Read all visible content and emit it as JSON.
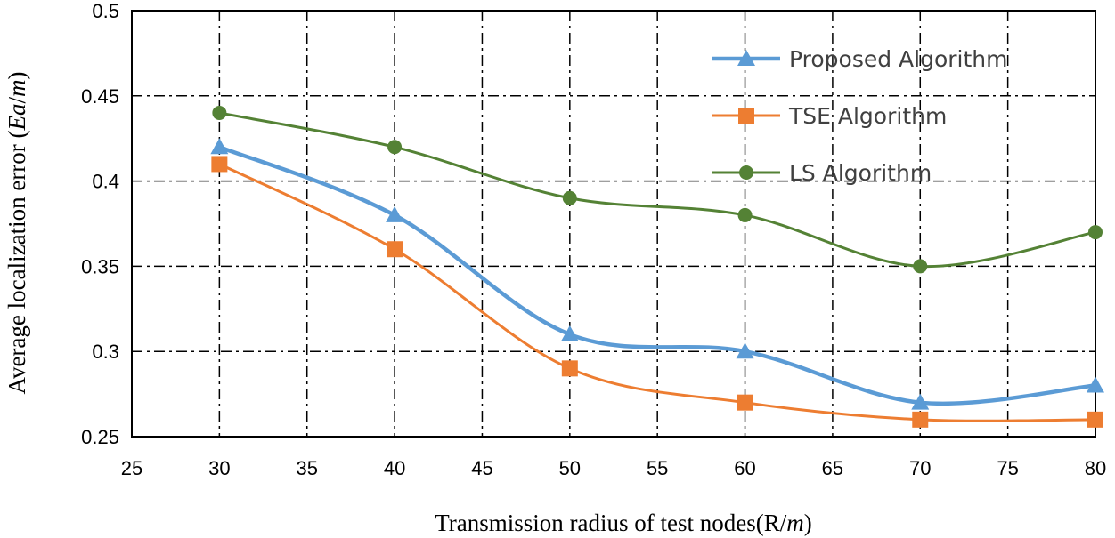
{
  "chart_data": {
    "type": "line",
    "title": "",
    "xlabel": "Transmission radius of test nodes(R/m)",
    "xlabel_parts": [
      "Transmission radius of test nodes(R/",
      "m",
      ")"
    ],
    "ylabel": "Average localization error (Ea/m)",
    "ylabel_parts": [
      "Average localization error (",
      "Ea",
      "/",
      "m",
      ")"
    ],
    "xlim": [
      25,
      80
    ],
    "ylim": [
      0.25,
      0.5
    ],
    "x_ticks": [
      25,
      30,
      35,
      40,
      45,
      50,
      55,
      60,
      65,
      70,
      75,
      80
    ],
    "x_tick_labels": [
      "25",
      "30",
      "35",
      "40",
      "45",
      "50",
      "55",
      "60",
      "65",
      "70",
      "75",
      "80"
    ],
    "y_ticks": [
      0.25,
      0.3,
      0.35,
      0.4,
      0.45,
      0.5
    ],
    "y_tick_labels": [
      "0.25",
      "0.3",
      "0.35",
      "0.4",
      "0.45",
      "0.5"
    ],
    "grid": true,
    "smooth": true,
    "legend_position": "top-right",
    "x": [
      30,
      40,
      50,
      60,
      70,
      80
    ],
    "series": [
      {
        "name": "Proposed Algorithm",
        "color": "#5b9bd5",
        "marker": "triangle",
        "values": [
          0.42,
          0.38,
          0.31,
          0.3,
          0.27,
          0.28
        ]
      },
      {
        "name": "TSE Algorithm",
        "color": "#ed7d31",
        "marker": "square",
        "values": [
          0.41,
          0.36,
          0.29,
          0.27,
          0.26,
          0.26
        ]
      },
      {
        "name": "LS Algorithm",
        "color": "#548235",
        "marker": "circle",
        "values": [
          0.44,
          0.42,
          0.39,
          0.38,
          0.35,
          0.37
        ]
      }
    ]
  }
}
